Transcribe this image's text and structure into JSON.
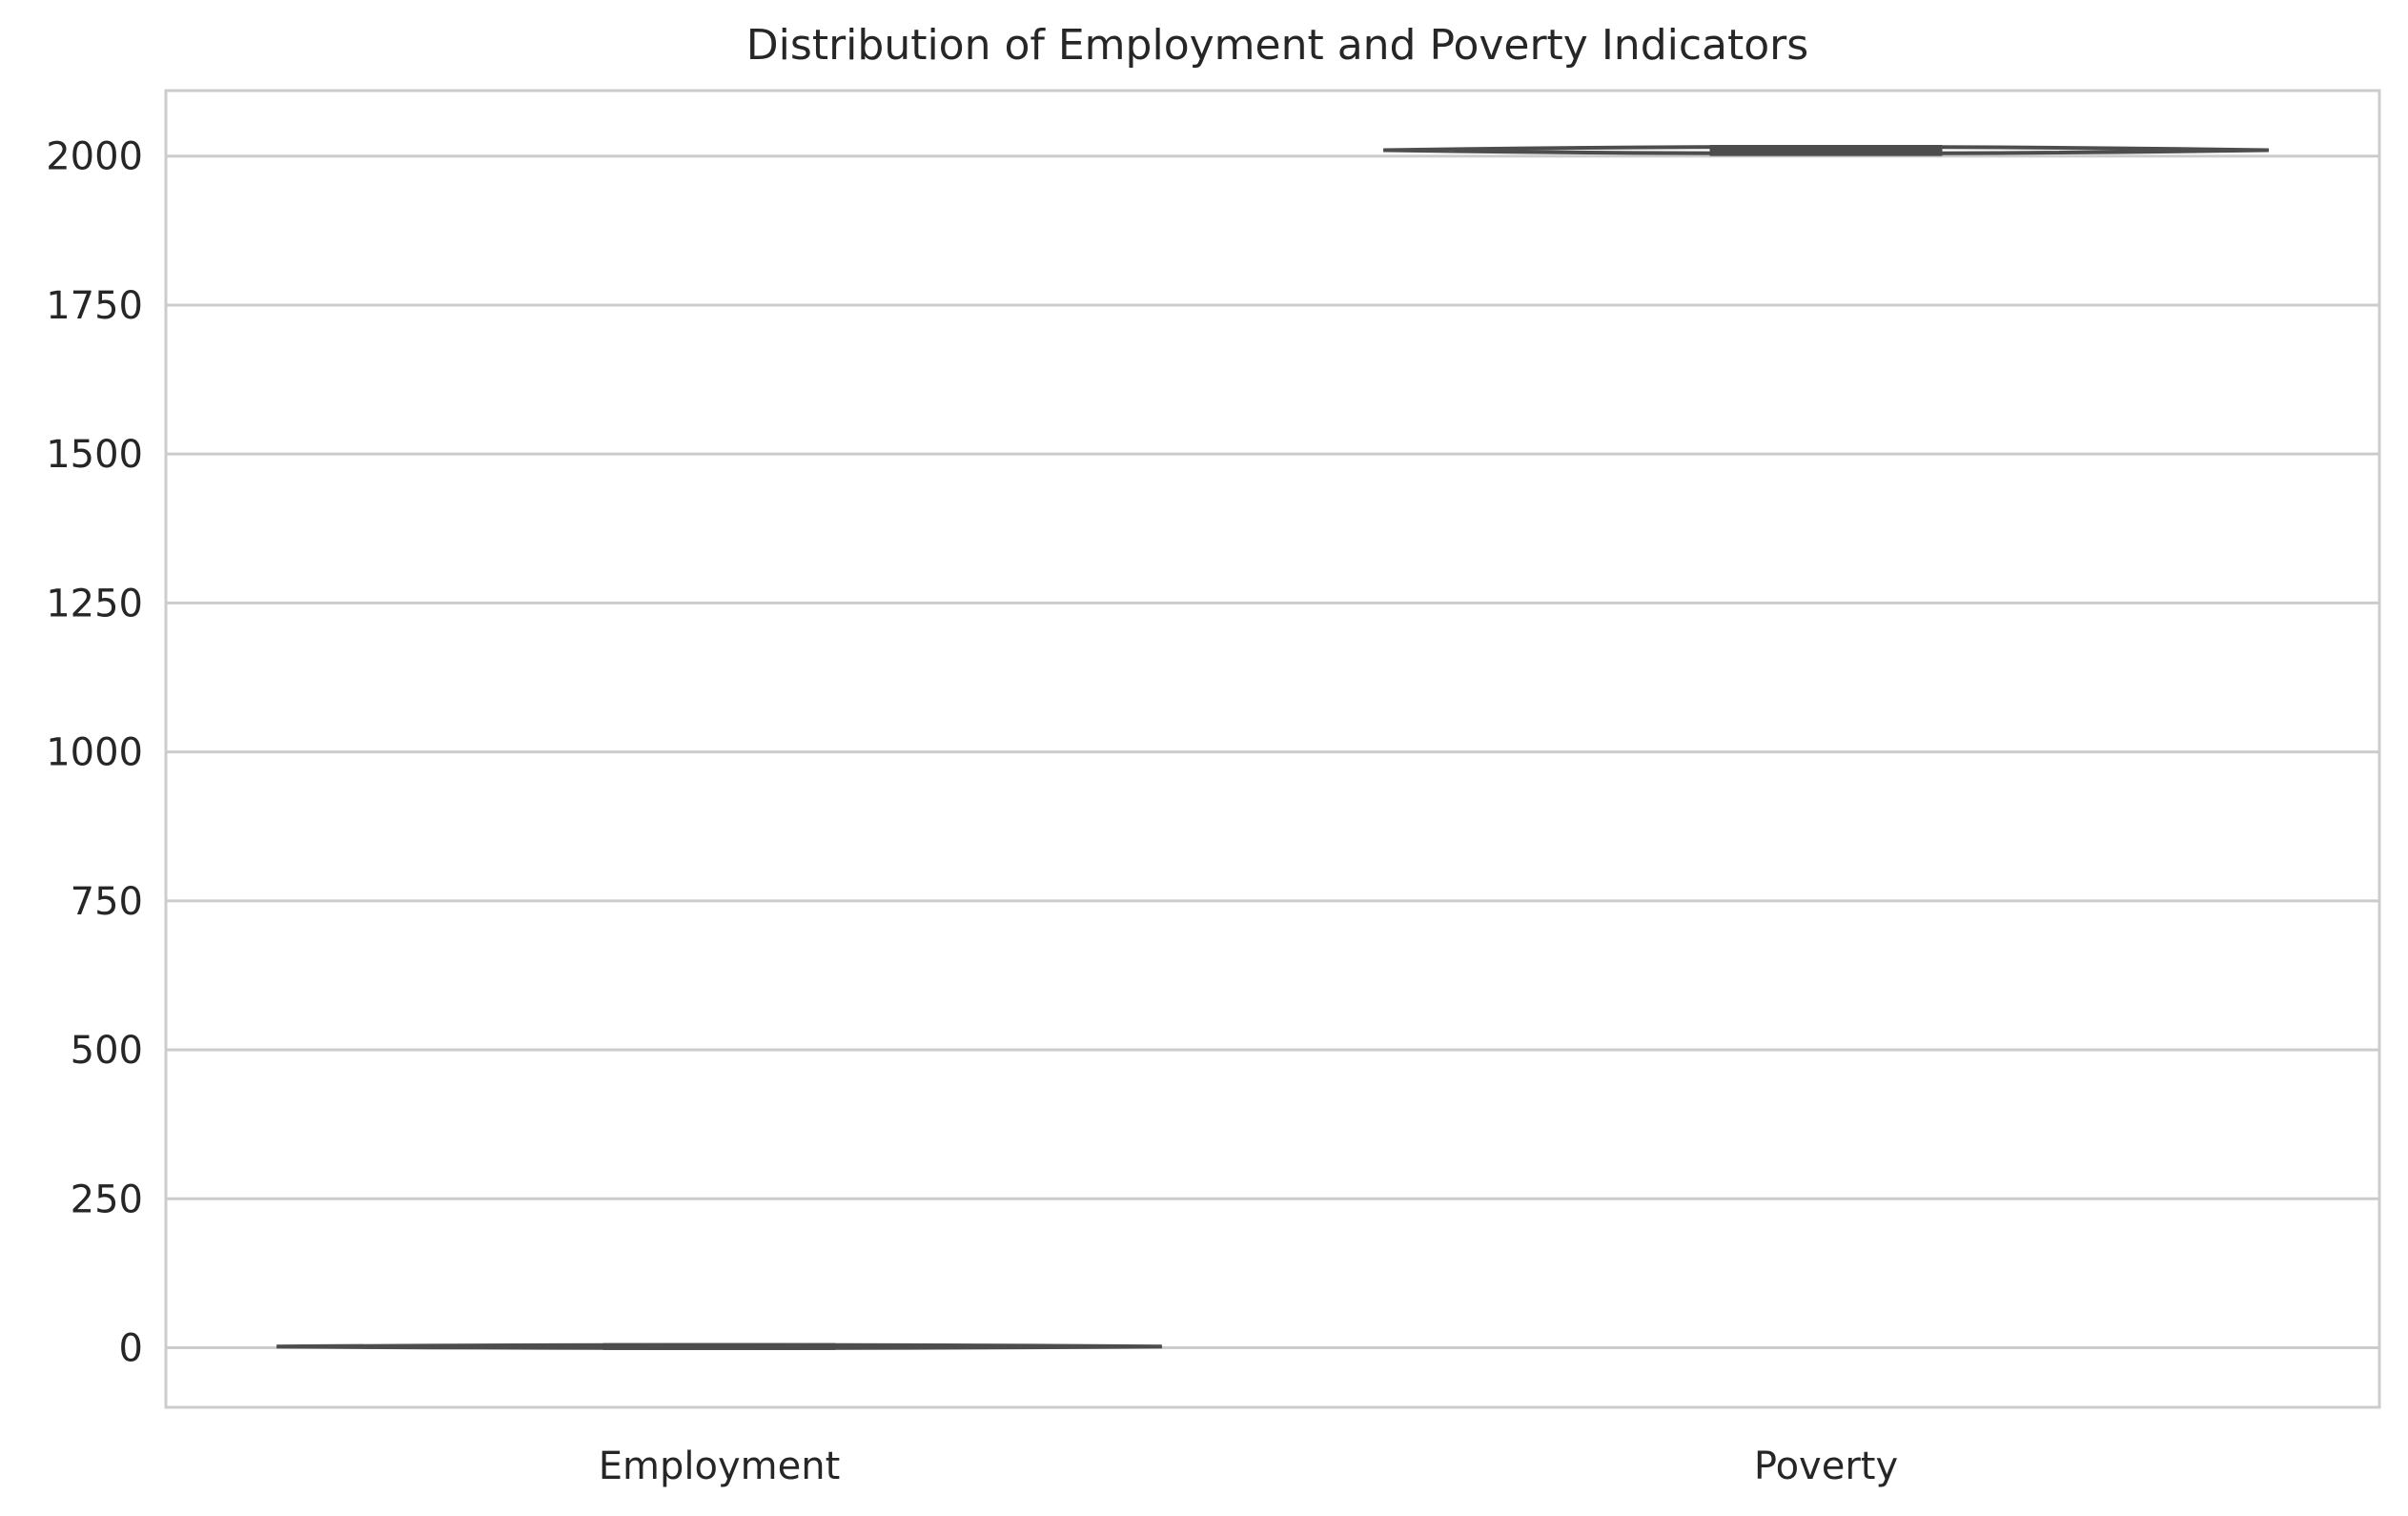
{
  "chart_data": {
    "type": "violin",
    "title": "Distribution of Employment and Poverty Indicators",
    "xlabel": "",
    "ylabel": "",
    "categories": [
      "Employment",
      "Poverty"
    ],
    "ylim": [
      -100,
      2110
    ],
    "yticks": [
      0,
      250,
      500,
      750,
      1000,
      1250,
      1500,
      1750,
      2000
    ],
    "grid": true,
    "series": [
      {
        "category": "Employment",
        "min": 0,
        "q1": 1,
        "median": 2,
        "q3": 3,
        "max": 4
      },
      {
        "category": "Poverty",
        "min": 2002,
        "q1": 2005,
        "median": 2010,
        "q3": 2014,
        "max": 2018
      }
    ],
    "colors": {
      "grid": "#cccccc",
      "axis_frame": "#cccccc",
      "violin_line": "#4d4d4d",
      "text": "#262626"
    }
  }
}
